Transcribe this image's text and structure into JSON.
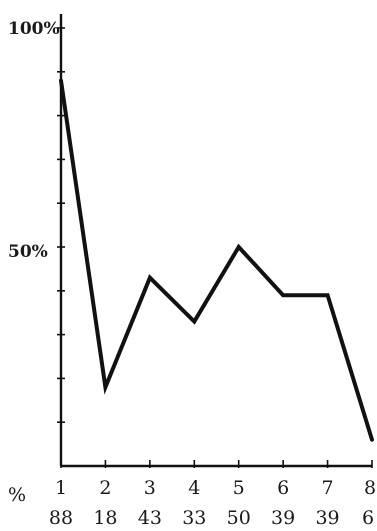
{
  "chart_data": {
    "type": "line",
    "title": "",
    "xlabel": "",
    "ylabel": "",
    "x": [
      "1",
      "2",
      "3",
      "4",
      "5",
      "6",
      "7",
      "8"
    ],
    "values": [
      88,
      18,
      43,
      33,
      50,
      39,
      39,
      6
    ],
    "value_row_label": "%",
    "value_labels": [
      "88",
      "18",
      "43",
      "33",
      "50",
      "39",
      "39",
      "6"
    ],
    "yticks": [
      "50%",
      "100%"
    ],
    "ylim": [
      0,
      100
    ],
    "grid": false,
    "line_color": "#111111"
  }
}
